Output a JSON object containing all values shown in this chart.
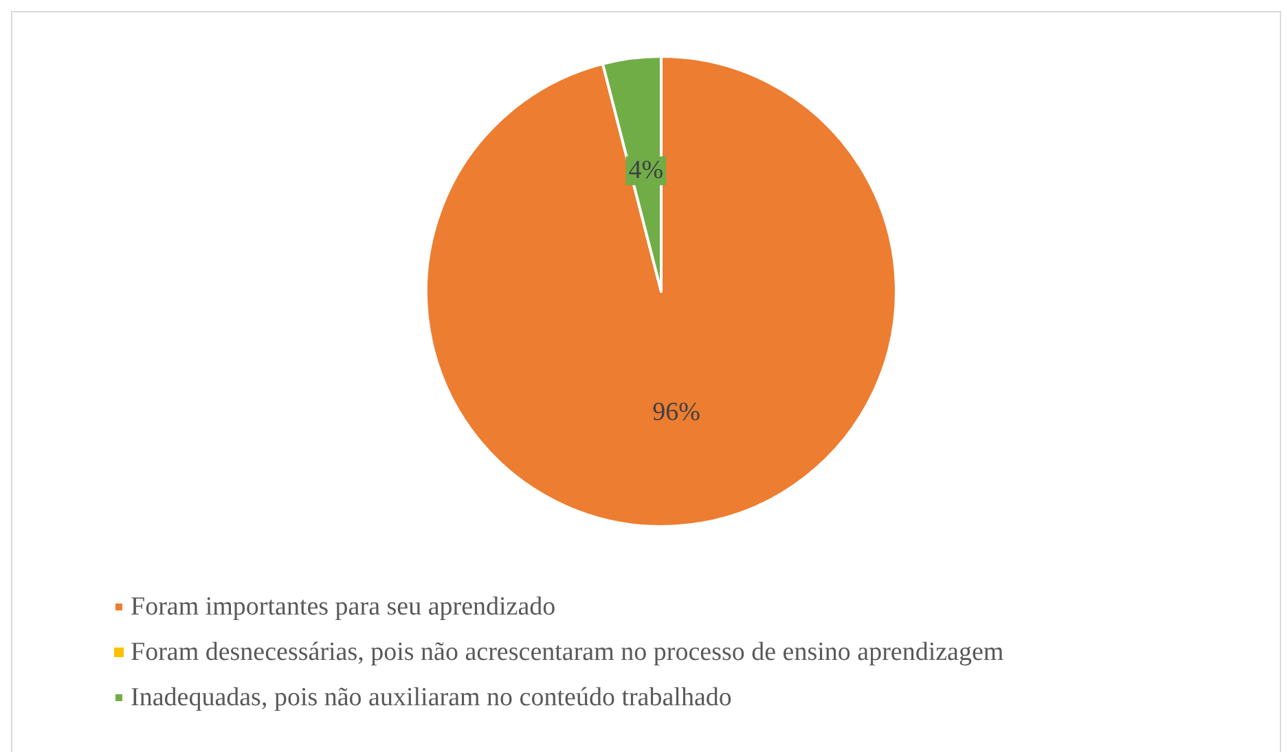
{
  "chart_data": {
    "type": "pie",
    "categories": [
      "Foram importantes para seu aprendizado",
      "Foram desnecessárias, pois não acrescentaram no processo de ensino aprendizagem",
      "Inadequadas, pois não auxiliaram no conteúdo trabalhado"
    ],
    "values": [
      96,
      0,
      4
    ],
    "colors": [
      "#ed7d31",
      "#ffc000",
      "#70ad47"
    ],
    "value_labels": [
      "96%",
      null,
      "4%"
    ],
    "legend": "bottom"
  }
}
